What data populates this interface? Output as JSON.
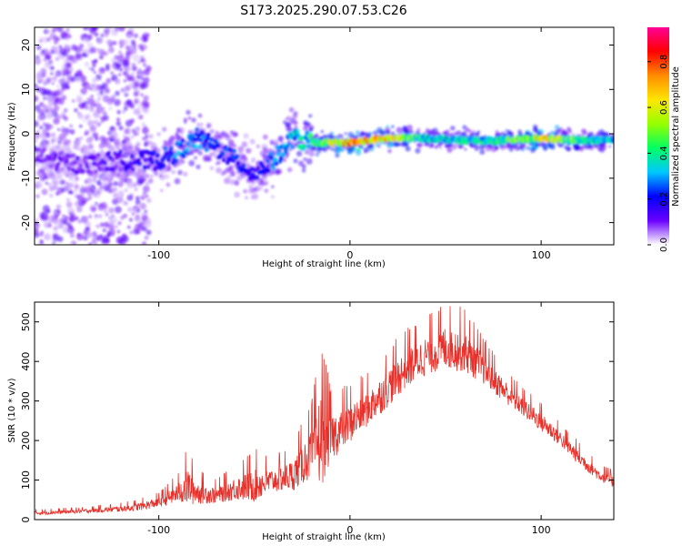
{
  "figure_title": "S173.2025.290.07.53.C26",
  "chart_data": [
    {
      "type": "heatmap",
      "title": "S173.2025.290.07.53.C26",
      "xlabel": "Height of straight line (km)",
      "ylabel": "Frequency (Hz)",
      "xlim": [
        -165,
        138
      ],
      "ylim": [
        -25,
        24
      ],
      "xticks": [
        -100,
        0,
        100
      ],
      "yticks": [
        -20,
        -10,
        0,
        10,
        20
      ],
      "xtick_labels": [
        "-100",
        "0",
        "100"
      ],
      "ytick_labels": [
        "-20",
        "-10",
        "0",
        "10",
        "20"
      ],
      "colorbar": {
        "label": "Normalized spectral amplitude",
        "range": [
          0,
          0.95
        ],
        "ticks": [
          0,
          0.2,
          0.4,
          0.6,
          0.8
        ],
        "tick_labels": [
          "0.0",
          "0.2",
          "0.4",
          "0.6",
          "0.8"
        ],
        "colormap": [
          "#ffffff",
          "#6a00ff",
          "#0000ff",
          "#00c8ff",
          "#00ff64",
          "#96ff00",
          "#ffe600",
          "#ff8c00",
          "#ff0000",
          "#ff0096"
        ]
      },
      "ridge": {
        "x": [
          -165,
          -140,
          -120,
          -100,
          -90,
          -80,
          -70,
          -60,
          -50,
          -40,
          -30,
          -20,
          0,
          20,
          40,
          60,
          80,
          100,
          120,
          138
        ],
        "freq": [
          -5,
          -7,
          -6,
          -6,
          -4,
          -1,
          -3,
          -6,
          -9,
          -6,
          -1,
          -2,
          -2,
          -1,
          -1,
          -1.5,
          -1.5,
          -1,
          -1.5,
          -1.5
        ],
        "amplitude": [
          0.1,
          0.12,
          0.15,
          0.22,
          0.3,
          0.3,
          0.25,
          0.25,
          0.2,
          0.28,
          0.35,
          0.45,
          0.85,
          0.7,
          0.4,
          0.4,
          0.45,
          0.7,
          0.45,
          0.4
        ]
      }
    },
    {
      "type": "line",
      "title": "",
      "xlabel": "Height of straight line (km)",
      "ylabel": "SNR (10 * v/v)",
      "xlim": [
        -165,
        138
      ],
      "ylim": [
        0,
        550
      ],
      "xticks": [
        -100,
        0,
        100
      ],
      "yticks": [
        0,
        100,
        200,
        300,
        400,
        500
      ],
      "xtick_labels": [
        "-100",
        "0",
        "100"
      ],
      "ytick_labels": [
        "0",
        "100",
        "200",
        "300",
        "400",
        "500"
      ],
      "series": [
        {
          "name": "SNR",
          "color": "#e8302a",
          "x": [
            -165,
            -140,
            -120,
            -110,
            -100,
            -90,
            -85,
            -80,
            -70,
            -60,
            -50,
            -40,
            -30,
            -20,
            -15,
            -10,
            0,
            10,
            20,
            30,
            40,
            50,
            60,
            70,
            80,
            90,
            100,
            110,
            120,
            130,
            138
          ],
          "y_base": [
            15,
            20,
            25,
            30,
            40,
            60,
            70,
            60,
            55,
            70,
            75,
            90,
            100,
            150,
            170,
            190,
            230,
            270,
            320,
            370,
            400,
            420,
            410,
            370,
            320,
            280,
            240,
            200,
            150,
            110,
            90
          ],
          "y_spread": [
            10,
            10,
            15,
            20,
            25,
            50,
            100,
            60,
            40,
            60,
            90,
            60,
            80,
            130,
            250,
            120,
            100,
            90,
            100,
            100,
            100,
            110,
            110,
            80,
            60,
            50,
            50,
            40,
            40,
            30,
            30
          ]
        }
      ]
    }
  ]
}
